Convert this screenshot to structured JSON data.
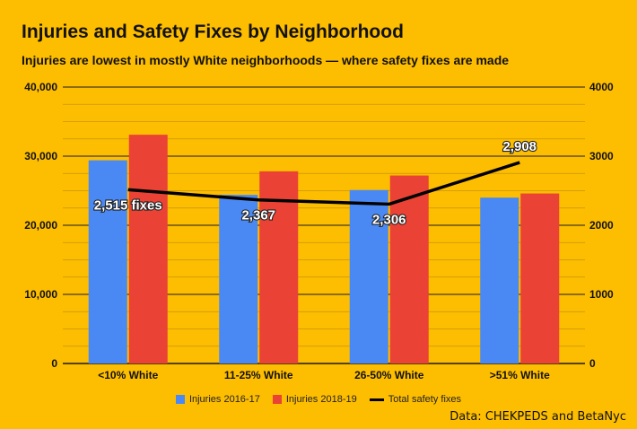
{
  "chart_data": {
    "type": "bar",
    "title": "Injuries and Safety Fixes by Neighborhood",
    "subtitle": "Injuries are lowest in mostly White neighborhoods — where safety fixes are made",
    "source": "Data: CHEKPEDS and BetaNyc",
    "categories": [
      "<10% White",
      "11-25% White",
      "26-50% White",
      ">51% White"
    ],
    "series": [
      {
        "name": "Injuries 2016-17",
        "color": "#4A89F3",
        "axis": "left",
        "values": [
          29400,
          24400,
          25100,
          24000
        ]
      },
      {
        "name": "Injuries 2018-19",
        "color": "#EA4235",
        "axis": "left",
        "values": [
          33100,
          27800,
          27200,
          24600
        ]
      }
    ],
    "line_series": {
      "name": "Total safety fixes",
      "color": "#000000",
      "axis": "right",
      "values": [
        2515,
        2367,
        2306,
        2908
      ],
      "labels": [
        "2,515 fixes",
        "2,367",
        "2,306",
        "2,908"
      ]
    },
    "left_axis": {
      "min": 0,
      "max": 40000,
      "ticks": [
        "0",
        "10,000",
        "20,000",
        "30,000",
        "40,000"
      ]
    },
    "right_axis": {
      "min": 0,
      "max": 4000,
      "ticks": [
        "0",
        "1000",
        "2000",
        "3000",
        "4000"
      ]
    },
    "legend": [
      "Injuries 2016-17",
      "Injuries 2018-19",
      "Total safety fixes"
    ]
  }
}
